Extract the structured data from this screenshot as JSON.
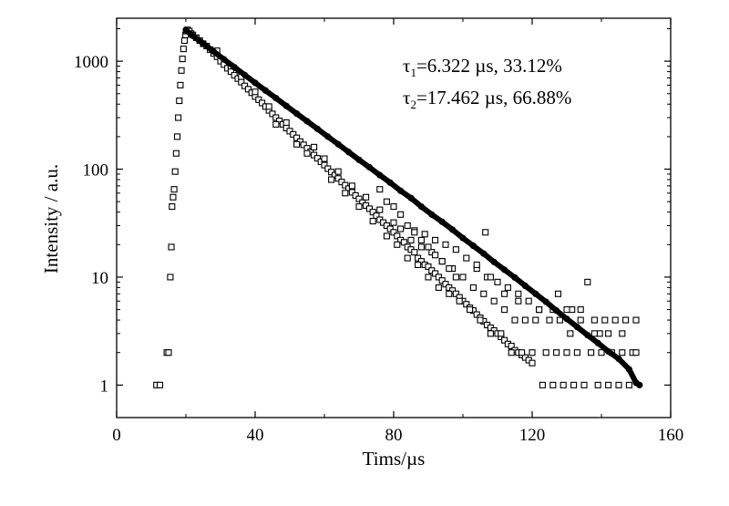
{
  "chart_data": {
    "type": "scatter",
    "xlabel": "Tims/µs",
    "ylabel": "Intensity / a.u.",
    "xlim": [
      0,
      160
    ],
    "ylim": [
      0.5,
      2500
    ],
    "yscale": "log",
    "xticks": [
      0,
      40,
      80,
      120,
      160
    ],
    "xtick_labels": [
      "0",
      "40",
      "80",
      "120",
      "160"
    ],
    "yticks": [
      1,
      10,
      100,
      1000
    ],
    "ytick_labels": [
      "1",
      "10",
      "100",
      "1000"
    ],
    "annotations": [
      {
        "symbol": "τ",
        "sub": "1",
        "text": "=6.322  µs, 33.12%"
      },
      {
        "symbol": "τ",
        "sub": "2",
        "text": "=17.462  µs, 66.88%"
      }
    ],
    "grid": false,
    "legend": "none",
    "series": [
      {
        "kind": "measured",
        "marker": "open-square",
        "points": [
          [
            11.5,
            1
          ],
          [
            12.5,
            1
          ],
          [
            14.5,
            2
          ],
          [
            15,
            2
          ],
          [
            15.5,
            10
          ],
          [
            15.8,
            19
          ],
          [
            16,
            45
          ],
          [
            16.3,
            55
          ],
          [
            16.6,
            65
          ],
          [
            16.9,
            95
          ],
          [
            17.2,
            140
          ],
          [
            17.5,
            200
          ],
          [
            17.8,
            300
          ],
          [
            18.1,
            430
          ],
          [
            18.4,
            600
          ],
          [
            18.7,
            820
          ],
          [
            19,
            1050
          ],
          [
            19.3,
            1300
          ],
          [
            19.6,
            1550
          ],
          [
            19.9,
            1750
          ],
          [
            20.2,
            1900
          ],
          [
            20.5,
            1950
          ],
          [
            21,
            1900
          ],
          [
            21.5,
            1800
          ],
          [
            22,
            1750
          ],
          [
            23,
            1650
          ],
          [
            24,
            1550
          ],
          [
            25,
            1450
          ],
          [
            26,
            1380
          ],
          [
            27,
            1280
          ],
          [
            28,
            1180
          ],
          [
            29,
            1100
          ],
          [
            30,
            1000
          ],
          [
            31,
            930
          ],
          [
            32,
            860
          ],
          [
            33,
            800
          ],
          [
            34,
            740
          ],
          [
            35,
            690
          ],
          [
            36,
            640
          ],
          [
            37,
            590
          ],
          [
            38,
            550
          ],
          [
            39,
            510
          ],
          [
            40,
            470
          ],
          [
            41,
            440
          ],
          [
            42,
            410
          ],
          [
            43,
            380
          ],
          [
            44,
            350
          ],
          [
            45,
            325
          ],
          [
            46,
            300
          ],
          [
            47,
            280
          ],
          [
            48,
            260
          ],
          [
            49,
            240
          ],
          [
            50,
            225
          ],
          [
            51,
            210
          ],
          [
            52,
            195
          ],
          [
            53,
            180
          ],
          [
            54,
            168
          ],
          [
            55,
            156
          ],
          [
            56,
            145
          ],
          [
            57,
            135
          ],
          [
            58,
            126
          ],
          [
            59,
            117
          ],
          [
            60,
            109
          ],
          [
            61,
            101
          ],
          [
            62,
            94
          ],
          [
            63,
            88
          ],
          [
            64,
            82
          ],
          [
            65,
            76
          ],
          [
            66,
            71
          ],
          [
            67,
            66
          ],
          [
            68,
            61
          ],
          [
            69,
            57
          ],
          [
            70,
            53
          ],
          [
            71,
            49
          ],
          [
            72,
            46
          ],
          [
            73,
            43
          ],
          [
            74,
            40
          ],
          [
            75,
            37
          ],
          [
            76,
            34
          ],
          [
            77,
            32
          ],
          [
            78,
            30
          ],
          [
            79,
            28
          ],
          [
            80,
            26
          ],
          [
            81,
            24
          ],
          [
            82,
            22
          ],
          [
            83,
            21
          ],
          [
            84,
            19
          ],
          [
            85,
            18
          ],
          [
            86,
            17
          ],
          [
            87,
            15
          ],
          [
            88,
            14
          ],
          [
            89,
            13
          ],
          [
            90,
            12.5
          ],
          [
            91,
            11.5
          ],
          [
            92,
            10.8
          ],
          [
            93,
            10
          ],
          [
            94,
            9.3
          ],
          [
            95,
            8.6
          ],
          [
            96,
            8
          ],
          [
            97,
            7.5
          ],
          [
            98,
            7
          ],
          [
            99,
            6.5
          ],
          [
            100,
            6
          ],
          [
            101,
            5.6
          ],
          [
            102,
            5.2
          ],
          [
            103,
            4.9
          ],
          [
            104,
            4.5
          ],
          [
            105,
            4.2
          ],
          [
            106,
            3.9
          ],
          [
            107,
            3.6
          ],
          [
            108,
            3.4
          ],
          [
            109,
            3.2
          ],
          [
            110,
            3
          ],
          [
            111,
            2.8
          ],
          [
            112,
            2.6
          ],
          [
            113,
            2.4
          ],
          [
            114,
            2.3
          ],
          [
            115,
            2.1
          ],
          [
            116,
            2
          ],
          [
            117,
            1.9
          ],
          [
            118,
            1.8
          ],
          [
            119,
            1.7
          ],
          [
            120,
            1.6
          ],
          [
            29,
            1250
          ],
          [
            33,
            900
          ],
          [
            36,
            720
          ],
          [
            40,
            520
          ],
          [
            44,
            380
          ],
          [
            46,
            260
          ],
          [
            49,
            270
          ],
          [
            52,
            170
          ],
          [
            55,
            140
          ],
          [
            57,
            160
          ],
          [
            60,
            125
          ],
          [
            62,
            80
          ],
          [
            64,
            95
          ],
          [
            66,
            60
          ],
          [
            68,
            70
          ],
          [
            70,
            45
          ],
          [
            72,
            55
          ],
          [
            74,
            33
          ],
          [
            76,
            42
          ],
          [
            78,
            24
          ],
          [
            80,
            32
          ],
          [
            81,
            20
          ],
          [
            82,
            28
          ],
          [
            84,
            15
          ],
          [
            85,
            22
          ],
          [
            86,
            27
          ],
          [
            87,
            13
          ],
          [
            88,
            19
          ],
          [
            89,
            25
          ],
          [
            90,
            10
          ],
          [
            91,
            17
          ],
          [
            92,
            22
          ],
          [
            93,
            8
          ],
          [
            94,
            14
          ],
          [
            95,
            20
          ],
          [
            96,
            7
          ],
          [
            97,
            12
          ],
          [
            98,
            18
          ],
          [
            99,
            6
          ],
          [
            100,
            10
          ],
          [
            101,
            15
          ],
          [
            102,
            5
          ],
          [
            103,
            8
          ],
          [
            104,
            12
          ],
          [
            105,
            4
          ],
          [
            106,
            7
          ],
          [
            106.5,
            26
          ],
          [
            107,
            10
          ],
          [
            108,
            3
          ],
          [
            109,
            6
          ],
          [
            110,
            9
          ],
          [
            111,
            3
          ],
          [
            112,
            5
          ],
          [
            113,
            8
          ],
          [
            114,
            2
          ],
          [
            115,
            4
          ],
          [
            116,
            7
          ],
          [
            117,
            2
          ],
          [
            118,
            4
          ],
          [
            119,
            6
          ],
          [
            120,
            2
          ],
          [
            121,
            4
          ],
          [
            122,
            5
          ],
          [
            123,
            1
          ],
          [
            124,
            2
          ],
          [
            125,
            4
          ],
          [
            126,
            1
          ],
          [
            127,
            2
          ],
          [
            128,
            4
          ],
          [
            129,
            1
          ],
          [
            130,
            2
          ],
          [
            131,
            3
          ],
          [
            132,
            1
          ],
          [
            133,
            2
          ],
          [
            134,
            4
          ],
          [
            135,
            1
          ],
          [
            136,
            9
          ],
          [
            137,
            2
          ],
          [
            138,
            4
          ],
          [
            139,
            1
          ],
          [
            140,
            2
          ],
          [
            141,
            4
          ],
          [
            142,
            1
          ],
          [
            143,
            2
          ],
          [
            144,
            4
          ],
          [
            145,
            1
          ],
          [
            146,
            2
          ],
          [
            147,
            4
          ],
          [
            148,
            1
          ],
          [
            149,
            2
          ],
          [
            150,
            4
          ],
          [
            139.5,
            3
          ],
          [
            127.5,
            7
          ],
          [
            131.5,
            5
          ],
          [
            76,
            65
          ],
          [
            78,
            50
          ],
          [
            80,
            45
          ],
          [
            82,
            38
          ],
          [
            84,
            30
          ],
          [
            86,
            26
          ],
          [
            88,
            22
          ],
          [
            90,
            19
          ],
          [
            92,
            16
          ],
          [
            94,
            14
          ],
          [
            96,
            12
          ],
          [
            98,
            10
          ],
          [
            104,
            13
          ],
          [
            108,
            10
          ],
          [
            112,
            7
          ],
          [
            116,
            6
          ],
          [
            122,
            5
          ],
          [
            126,
            5
          ],
          [
            130,
            5
          ],
          [
            134,
            5
          ],
          [
            138,
            3
          ],
          [
            142,
            3
          ],
          [
            146,
            3
          ],
          [
            150,
            2
          ]
        ]
      },
      {
        "kind": "fit",
        "marker": "filled-circle",
        "points": [
          [
            20,
            1950
          ],
          [
            22,
            1720
          ],
          [
            25,
            1460
          ],
          [
            28,
            1230
          ],
          [
            31,
            1040
          ],
          [
            34,
            880
          ],
          [
            37,
            745
          ],
          [
            40,
            630
          ],
          [
            43,
            535
          ],
          [
            46,
            455
          ],
          [
            49,
            385
          ],
          [
            52,
            327
          ],
          [
            55,
            278
          ],
          [
            58,
            236
          ],
          [
            61,
            200
          ],
          [
            64,
            170
          ],
          [
            67,
            144
          ],
          [
            70,
            122
          ],
          [
            73,
            104
          ],
          [
            76,
            88
          ],
          [
            79,
            75
          ],
          [
            82,
            63
          ],
          [
            85,
            54
          ],
          [
            88,
            45
          ],
          [
            91,
            38
          ],
          [
            94,
            32.5
          ],
          [
            97,
            27.5
          ],
          [
            100,
            23
          ],
          [
            103,
            19.5
          ],
          [
            106,
            16.5
          ],
          [
            109,
            13.8
          ],
          [
            112,
            11.7
          ],
          [
            115,
            9.9
          ],
          [
            118,
            8.3
          ],
          [
            121,
            7
          ],
          [
            124,
            5.9
          ],
          [
            127,
            4.9
          ],
          [
            130,
            4.1
          ],
          [
            133,
            3.45
          ],
          [
            136,
            2.9
          ],
          [
            139,
            2.45
          ],
          [
            142,
            2.05
          ],
          [
            145,
            1.75
          ],
          [
            148,
            1.4
          ],
          [
            150,
            1.05
          ],
          [
            151,
            1
          ]
        ]
      }
    ]
  }
}
